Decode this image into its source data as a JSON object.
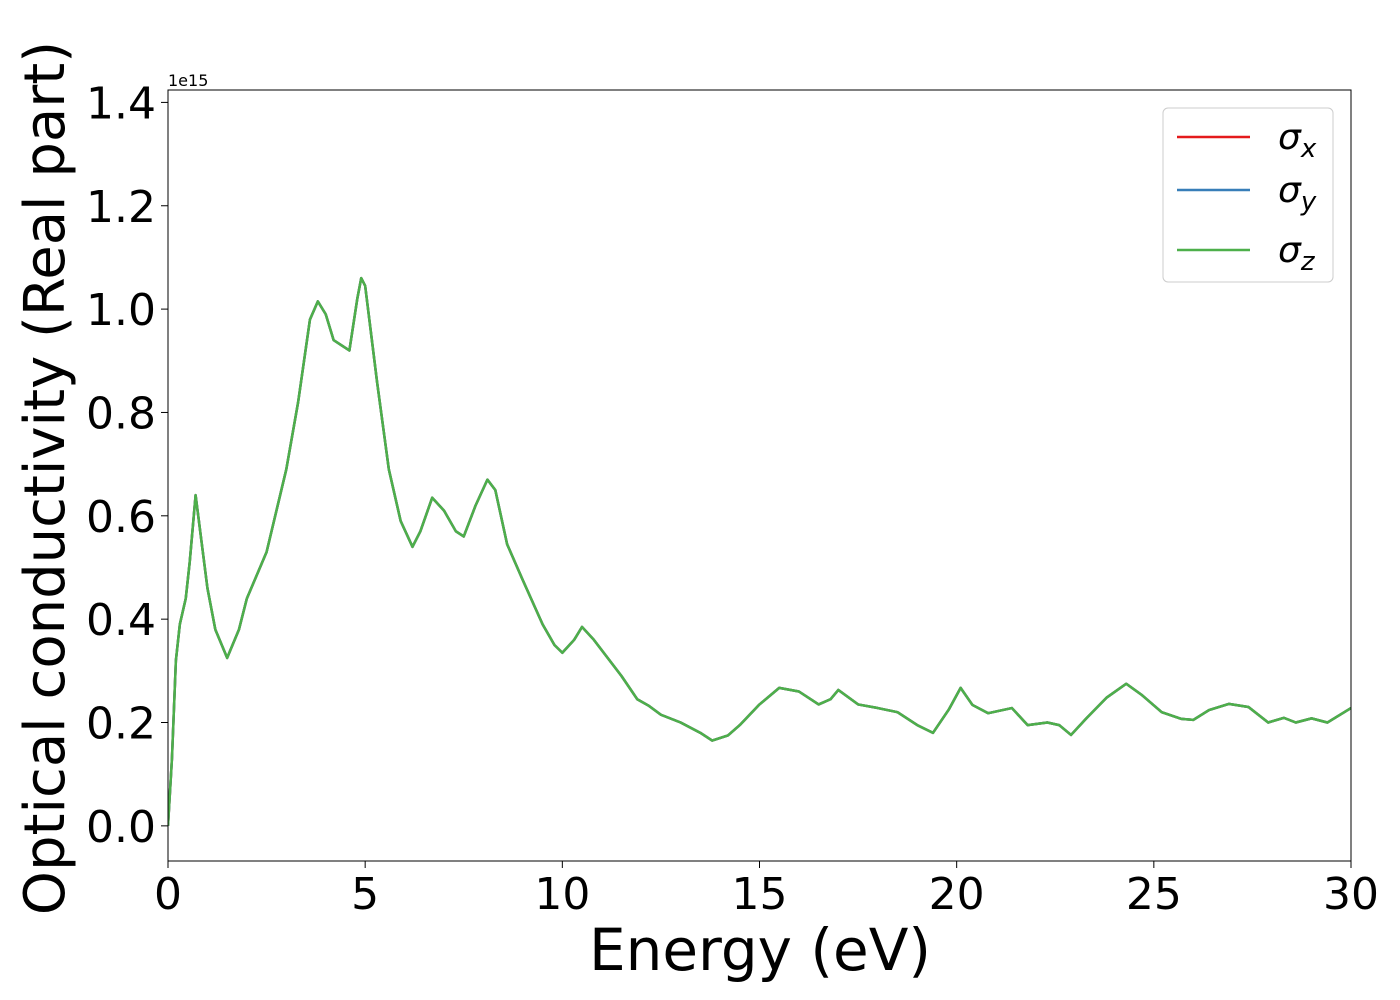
{
  "chart_data": {
    "type": "line",
    "xlabel": "Energy (eV)",
    "ylabel": "Optical conductivity (Real part)",
    "y_offset_label": "1e15",
    "xlim": [
      0,
      30
    ],
    "ylim": [
      -0.068,
      1.424
    ],
    "xticks": [
      0,
      5,
      10,
      15,
      20,
      25,
      30
    ],
    "yticks": [
      {
        "value": 0,
        "label": "0.0"
      },
      0.2,
      0.4,
      0.6,
      0.8,
      {
        "value": 1,
        "label": "1.0"
      },
      1.2,
      1.4
    ],
    "legend": "upper right",
    "x": [
      0,
      0.1,
      0.2,
      0.3,
      0.45,
      0.55,
      0.7,
      0.85,
      1.0,
      1.2,
      1.5,
      1.8,
      2.0,
      2.5,
      3.0,
      3.3,
      3.6,
      3.8,
      4.0,
      4.2,
      4.4,
      4.6,
      4.8,
      4.9,
      5.0,
      5.3,
      5.6,
      5.9,
      6.2,
      6.4,
      6.7,
      7.0,
      7.3,
      7.5,
      7.8,
      8.1,
      8.3,
      8.6,
      9.0,
      9.5,
      9.8,
      10.0,
      10.3,
      10.5,
      10.8,
      11.5,
      11.9,
      12.2,
      12.5,
      13.0,
      13.5,
      13.8,
      14.2,
      14.5,
      15.0,
      15.5,
      16.0,
      16.5,
      16.8,
      17.0,
      17.5,
      18.0,
      18.5,
      19.0,
      19.4,
      19.8,
      20.1,
      20.4,
      20.8,
      21.4,
      21.8,
      22.3,
      22.6,
      22.9,
      23.3,
      23.8,
      24.3,
      24.7,
      25.2,
      25.7,
      26.0,
      26.4,
      26.9,
      27.4,
      27.9,
      28.3,
      28.6,
      29.0,
      29.4,
      30.0
    ],
    "series": [
      {
        "name": "σx",
        "color": "#e41a1c",
        "values": [
          0,
          0.13,
          0.32,
          0.39,
          0.44,
          0.51,
          0.64,
          0.55,
          0.46,
          0.38,
          0.325,
          0.38,
          0.44,
          0.53,
          0.69,
          0.82,
          0.98,
          1.015,
          0.99,
          0.94,
          0.93,
          0.92,
          1.02,
          1.06,
          1.045,
          0.86,
          0.69,
          0.59,
          0.54,
          0.57,
          0.635,
          0.61,
          0.57,
          0.56,
          0.62,
          0.67,
          0.65,
          0.545,
          0.475,
          0.39,
          0.35,
          0.335,
          0.36,
          0.385,
          0.36,
          0.29,
          0.245,
          0.232,
          0.215,
          0.2,
          0.18,
          0.165,
          0.175,
          0.195,
          0.235,
          0.267,
          0.26,
          0.235,
          0.245,
          0.263,
          0.235,
          0.228,
          0.22,
          0.195,
          0.18,
          0.225,
          0.267,
          0.234,
          0.218,
          0.228,
          0.195,
          0.2,
          0.195,
          0.176,
          0.209,
          0.248,
          0.275,
          0.253,
          0.22,
          0.207,
          0.205,
          0.224,
          0.236,
          0.23,
          0.2,
          0.209,
          0.2,
          0.208,
          0.2,
          0.228
        ]
      },
      {
        "name": "σy",
        "color": "#377eb8",
        "values": [
          0,
          0.13,
          0.32,
          0.39,
          0.44,
          0.51,
          0.64,
          0.55,
          0.46,
          0.38,
          0.325,
          0.38,
          0.44,
          0.53,
          0.69,
          0.82,
          0.98,
          1.015,
          0.99,
          0.94,
          0.93,
          0.92,
          1.02,
          1.06,
          1.045,
          0.86,
          0.69,
          0.59,
          0.54,
          0.57,
          0.635,
          0.61,
          0.57,
          0.56,
          0.62,
          0.67,
          0.65,
          0.545,
          0.475,
          0.39,
          0.35,
          0.335,
          0.36,
          0.385,
          0.36,
          0.29,
          0.245,
          0.232,
          0.215,
          0.2,
          0.18,
          0.165,
          0.175,
          0.195,
          0.235,
          0.267,
          0.26,
          0.235,
          0.245,
          0.263,
          0.235,
          0.228,
          0.22,
          0.195,
          0.18,
          0.225,
          0.267,
          0.234,
          0.218,
          0.228,
          0.195,
          0.2,
          0.195,
          0.176,
          0.209,
          0.248,
          0.275,
          0.253,
          0.22,
          0.207,
          0.205,
          0.224,
          0.236,
          0.23,
          0.2,
          0.209,
          0.2,
          0.208,
          0.2,
          0.228
        ]
      },
      {
        "name": "σz",
        "color": "#4daf4a",
        "values": [
          0,
          0.13,
          0.32,
          0.39,
          0.44,
          0.51,
          0.64,
          0.55,
          0.46,
          0.38,
          0.325,
          0.38,
          0.44,
          0.53,
          0.69,
          0.82,
          0.98,
          1.015,
          0.99,
          0.94,
          0.93,
          0.92,
          1.02,
          1.06,
          1.045,
          0.86,
          0.69,
          0.59,
          0.54,
          0.57,
          0.635,
          0.61,
          0.57,
          0.56,
          0.62,
          0.67,
          0.65,
          0.545,
          0.475,
          0.39,
          0.35,
          0.335,
          0.36,
          0.385,
          0.36,
          0.29,
          0.245,
          0.232,
          0.215,
          0.2,
          0.18,
          0.165,
          0.175,
          0.195,
          0.235,
          0.267,
          0.26,
          0.235,
          0.245,
          0.263,
          0.235,
          0.228,
          0.22,
          0.195,
          0.18,
          0.225,
          0.267,
          0.234,
          0.218,
          0.228,
          0.195,
          0.2,
          0.195,
          0.176,
          0.209,
          0.248,
          0.275,
          0.253,
          0.22,
          0.207,
          0.205,
          0.224,
          0.236,
          0.23,
          0.2,
          0.209,
          0.2,
          0.208,
          0.2,
          0.228
        ]
      }
    ]
  }
}
